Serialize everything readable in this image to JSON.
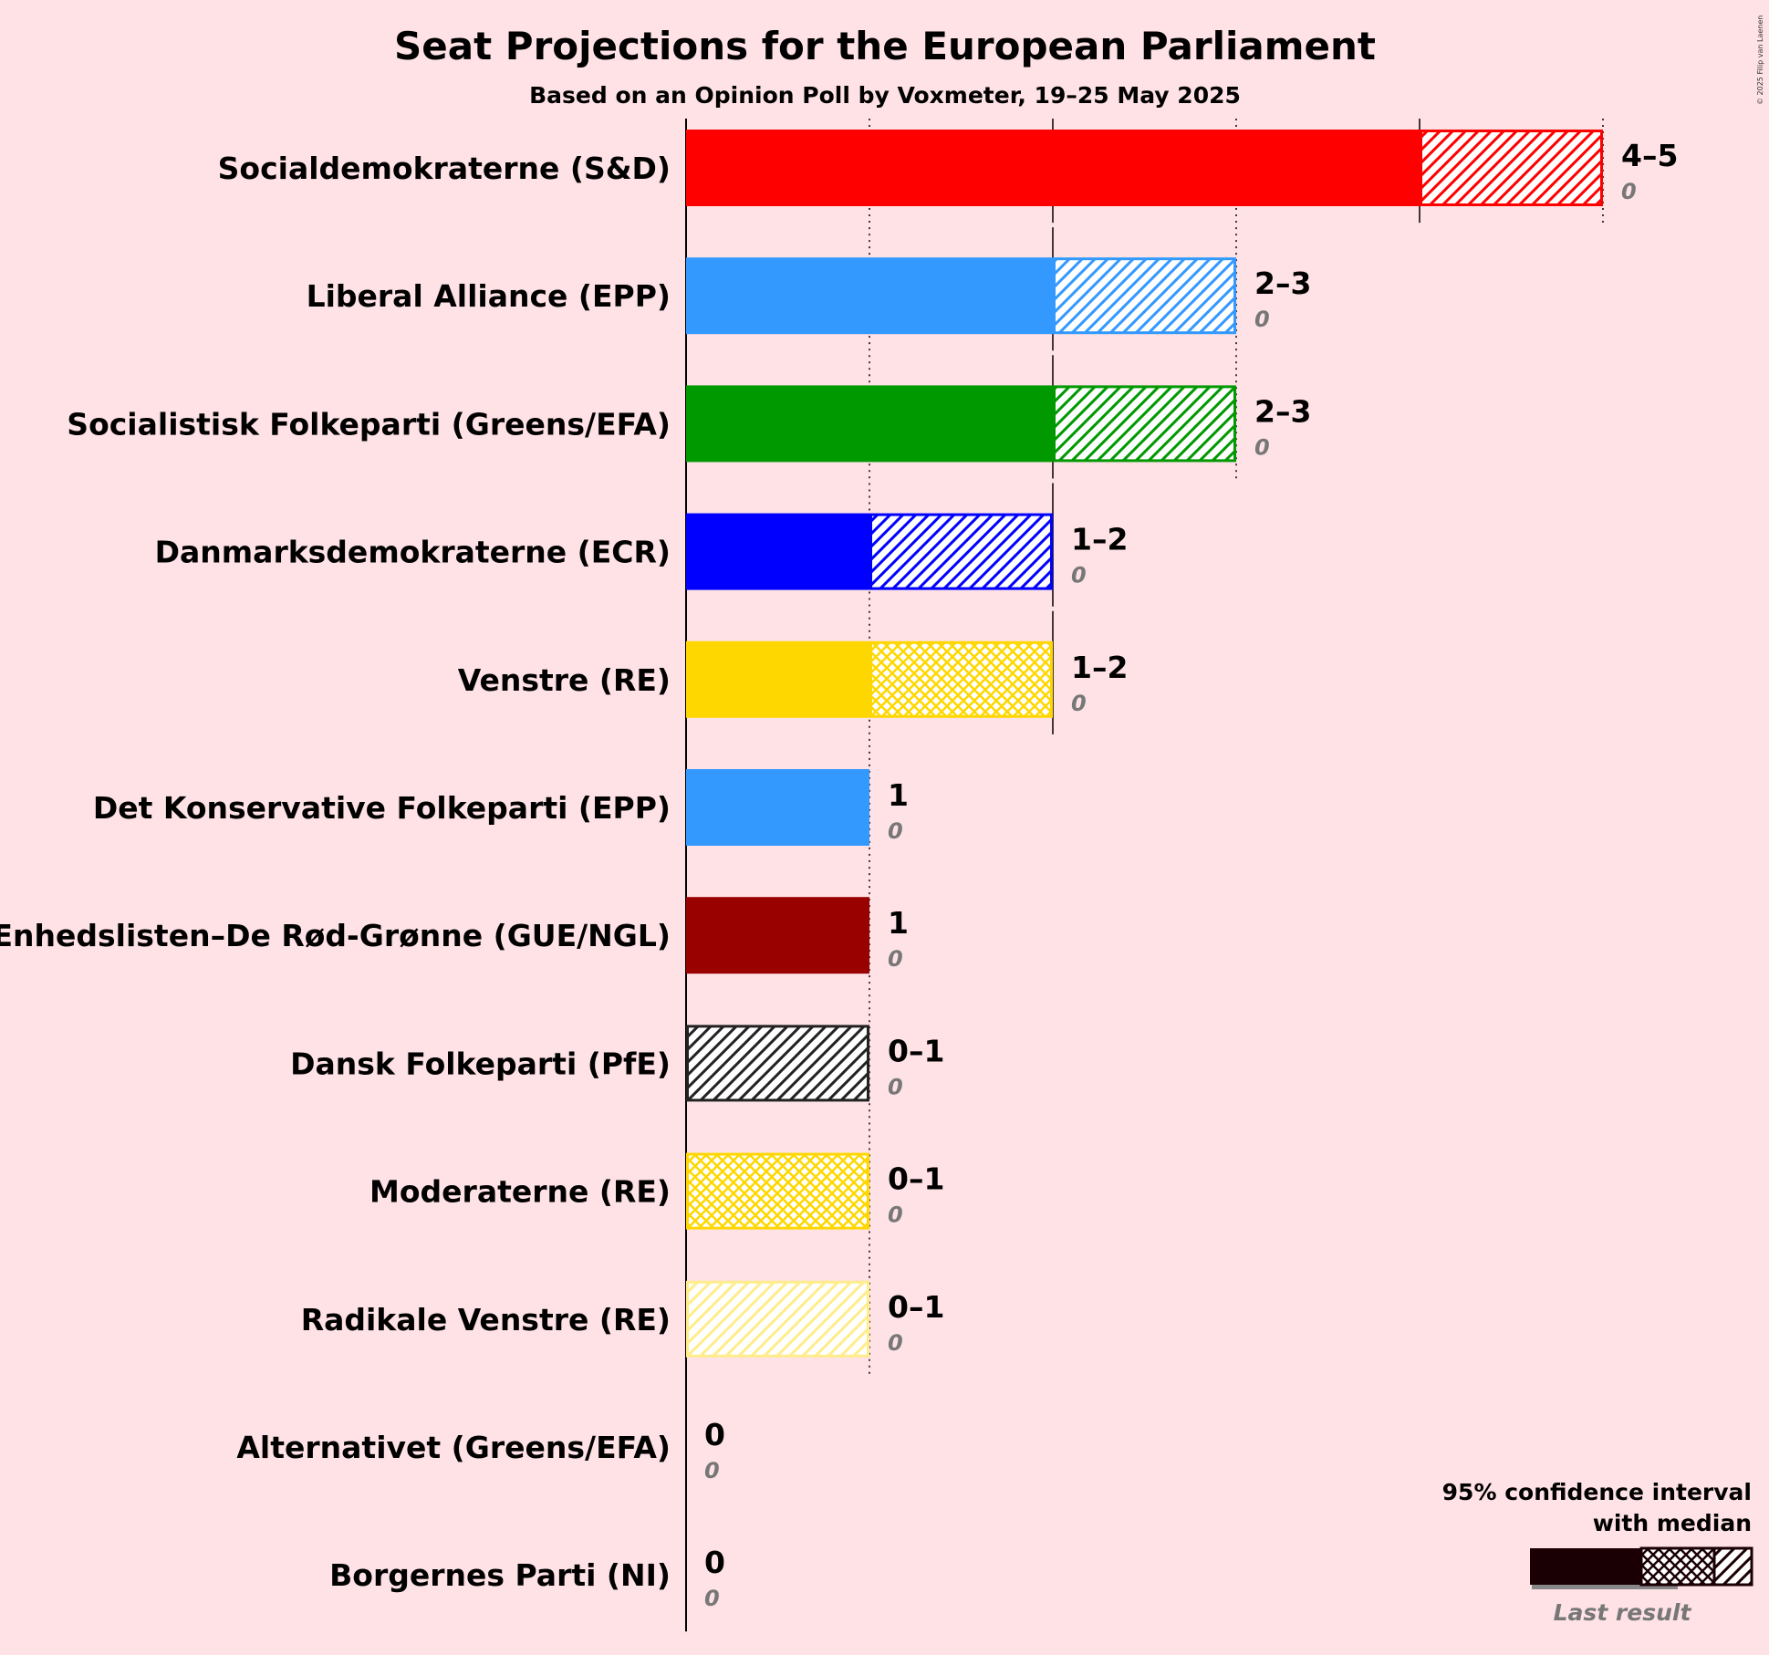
{
  "chart_data": {
    "type": "bar",
    "orientation": "horizontal",
    "title": "Seat Projections for the European Parliament",
    "subtitle": "Based on an Opinion Poll by Voxmeter, 19–25 May 2025",
    "copyright": "© 2025 Filip van Laenen",
    "x_range": [
      0,
      5
    ],
    "series_encoding": "solid = lower bound of 95% CI, crosshatch = up to median, diagonal hatch = up to upper bound",
    "parties": [
      {
        "name": "Socialdemokraterne (S&D)",
        "color": "#FF0000",
        "low": 4,
        "median": 4,
        "high": 5,
        "range_label": "4–5",
        "last_result": "0"
      },
      {
        "name": "Liberal Alliance (EPP)",
        "color": "#3399FF",
        "low": 2,
        "median": 2,
        "high": 3,
        "range_label": "2–3",
        "last_result": "0"
      },
      {
        "name": "Socialistisk Folkeparti (Greens/EFA)",
        "color": "#009900",
        "low": 2,
        "median": 2,
        "high": 3,
        "range_label": "2–3",
        "last_result": "0"
      },
      {
        "name": "Danmarksdemokraterne (ECR)",
        "color": "#0000FF",
        "low": 1,
        "median": 1,
        "high": 2,
        "range_label": "1–2",
        "last_result": "0"
      },
      {
        "name": "Venstre (RE)",
        "color": "#FFD700",
        "low": 1,
        "median": 2,
        "high": 2,
        "range_label": "1–2",
        "last_result": "0"
      },
      {
        "name": "Det Konservative Folkeparti (EPP)",
        "color": "#3399FF",
        "low": 1,
        "median": 1,
        "high": 1,
        "range_label": "1",
        "last_result": "0"
      },
      {
        "name": "Enhedslisten–De Rød-Grønne (GUE/NGL)",
        "color": "#990000",
        "low": 1,
        "median": 1,
        "high": 1,
        "range_label": "1",
        "last_result": "0"
      },
      {
        "name": "Dansk Folkeparti (PfE)",
        "color": "#222222",
        "low": 0,
        "median": 0,
        "high": 1,
        "range_label": "0–1",
        "last_result": "0"
      },
      {
        "name": "Moderaterne (RE)",
        "color": "#FFD700",
        "low": 0,
        "median": 1,
        "high": 1,
        "range_label": "0–1",
        "last_result": "0"
      },
      {
        "name": "Radikale Venstre (RE)",
        "color": "#FFD700",
        "low": 0,
        "median": 0,
        "high": 1,
        "range_label": "0–1",
        "last_result": "0",
        "faded": true
      },
      {
        "name": "Alternativet (Greens/EFA)",
        "color": "#009900",
        "low": 0,
        "median": 0,
        "high": 0,
        "range_label": "0",
        "last_result": "0"
      },
      {
        "name": "Borgernes Parti (NI)",
        "color": "#3399FF",
        "low": 0,
        "median": 0,
        "high": 0,
        "range_label": "0",
        "last_result": "0"
      }
    ],
    "legend": {
      "line1": "95% confidence interval",
      "line2": "with median",
      "last_result": "Last result",
      "placement": "bottom-right"
    }
  }
}
